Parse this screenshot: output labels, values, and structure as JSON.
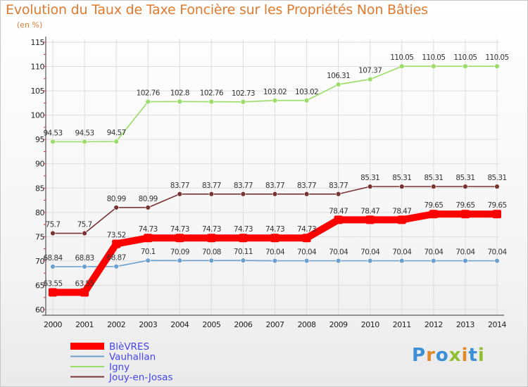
{
  "chart_data": {
    "type": "line",
    "title": "Evolution du Taux de Taxe Foncière sur les Propriétés Non Bâties",
    "ylabel": "(en %)",
    "xlabel": "",
    "x": [
      "2000",
      "2001",
      "2002",
      "2003",
      "2004",
      "2005",
      "2006",
      "2007",
      "2008",
      "2009",
      "2010",
      "2011",
      "2012",
      "2013",
      "2014"
    ],
    "ylim": [
      60,
      115
    ],
    "yticks": [
      60,
      65,
      70,
      75,
      80,
      85,
      90,
      95,
      100,
      105,
      110,
      115
    ],
    "grid": true,
    "series": [
      {
        "name": "BlèVRES",
        "color": "#ff0000",
        "values": [
          63.55,
          63.55,
          73.52,
          74.73,
          74.73,
          74.73,
          74.73,
          74.73,
          74.73,
          78.47,
          78.47,
          78.47,
          79.65,
          79.65,
          79.65
        ],
        "labels": [
          "63.55",
          "63.55",
          "73.52",
          "74.73",
          "74.73",
          "74.73",
          "74.73",
          "74.73",
          "74.73",
          "78.47",
          "78.47",
          "78.47",
          "79.65",
          "79.65",
          "79.65"
        ]
      },
      {
        "name": "Vauhallan",
        "color": "#6b9fcf",
        "values": [
          68.84,
          68.83,
          68.87,
          70.1,
          70.09,
          70.08,
          70.11,
          70.04,
          70.04,
          70.04,
          70.04,
          70.04,
          70.04,
          70.04,
          70.04
        ],
        "labels": [
          "68.84",
          "68.83",
          "68.87",
          "70.1",
          "70.09",
          "70.08",
          "70.11",
          "70.04",
          "70.04",
          "70.04",
          "70.04",
          "70.04",
          "70.04",
          "70.04",
          "70.04"
        ]
      },
      {
        "name": "Igny",
        "color": "#99dd66",
        "values": [
          94.53,
          94.53,
          94.57,
          102.76,
          102.8,
          102.76,
          102.73,
          103.02,
          103.02,
          106.31,
          107.37,
          110.05,
          110.05,
          110.05,
          110.05
        ],
        "labels": [
          "94.53",
          "94.53",
          "94.57",
          "102.76",
          "102.8",
          "102.76",
          "102.73",
          "103.02",
          "103.02",
          "106.31",
          "107.37",
          "110.05",
          "110.05",
          "110.05",
          "110.05"
        ]
      },
      {
        "name": "Jouy-en-Josas",
        "color": "#7a3333",
        "values": [
          75.7,
          75.7,
          80.99,
          80.99,
          83.77,
          83.77,
          83.77,
          83.77,
          83.77,
          83.77,
          85.31,
          85.31,
          85.31,
          85.31,
          85.31
        ],
        "labels": [
          "75.7",
          "75.7",
          "80.99",
          "80.99",
          "83.77",
          "83.77",
          "83.77",
          "83.77",
          "83.77",
          "83.77",
          "85.31",
          "85.31",
          "85.31",
          "85.31",
          "85.31"
        ]
      }
    ]
  },
  "logo": {
    "text": "Proxiti"
  }
}
